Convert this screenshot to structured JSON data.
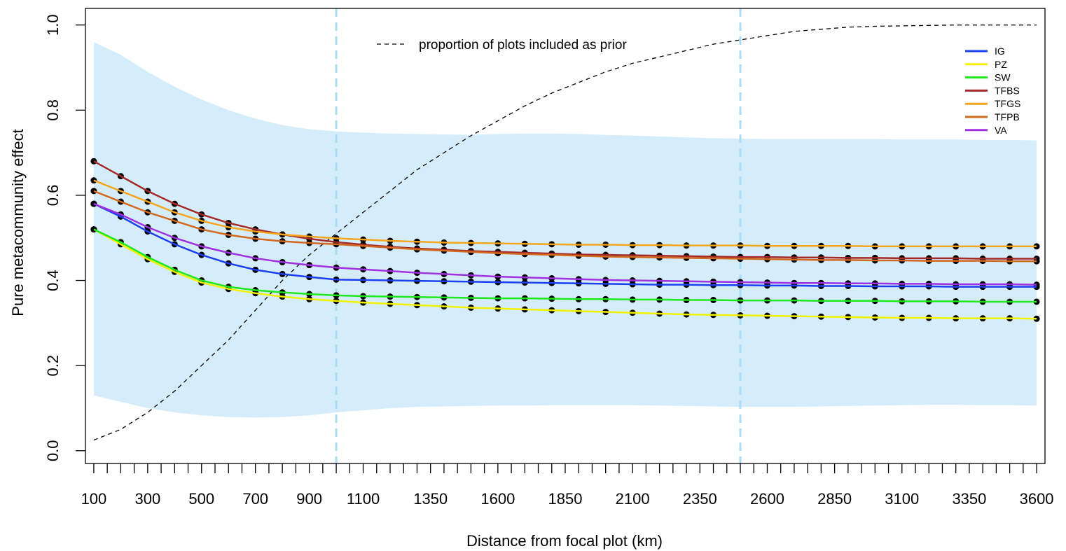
{
  "chart_data": {
    "type": "line",
    "x_label": "Distance from focal plot (km)",
    "y_label": "Pure metacommunity effect",
    "x": [
      100,
      200,
      300,
      400,
      500,
      600,
      700,
      800,
      900,
      1000,
      1100,
      1200,
      1300,
      1400,
      1500,
      1600,
      1700,
      1800,
      1900,
      2000,
      2100,
      2200,
      2300,
      2400,
      2500,
      2600,
      2700,
      2800,
      2900,
      3000,
      3100,
      3200,
      3300,
      3400,
      3500,
      3600
    ],
    "xlim": [
      69,
      3631
    ],
    "ylim": [
      -0.03,
      1.039
    ],
    "xticks": [
      100,
      300,
      500,
      700,
      900,
      1100,
      1350,
      1600,
      1850,
      2100,
      2350,
      2600,
      2850,
      3100,
      3350,
      3600
    ],
    "xminor_ticks": [
      150,
      200,
      250,
      350,
      400,
      450,
      550,
      600,
      650,
      750,
      800,
      850,
      950,
      1000,
      1050,
      1150,
      1200,
      1250,
      1300,
      1400,
      1450,
      1500,
      1550,
      1650,
      1700,
      1750,
      1800,
      1900,
      1950,
      2000,
      2050,
      2150,
      2200,
      2250,
      2300,
      2400,
      2450,
      2500,
      2550,
      2650,
      2700,
      2750,
      2800,
      2900,
      2950,
      3000,
      3050,
      3150,
      3200,
      3250,
      3300,
      3400,
      3450,
      3500,
      3550
    ],
    "yticks": [
      {
        "value": 0,
        "label": "0.0"
      },
      0.2,
      0.4,
      0.6,
      0.8,
      {
        "value": 1,
        "label": "1.0"
      }
    ],
    "points": true,
    "legend_position": "top-right",
    "series": [
      {
        "name": "IG",
        "color": "#1c3ff0",
        "values": [
          0.58,
          0.55,
          0.515,
          0.485,
          0.46,
          0.44,
          0.425,
          0.415,
          0.408,
          0.402,
          0.401,
          0.4,
          0.399,
          0.398,
          0.397,
          0.396,
          0.395,
          0.394,
          0.393,
          0.392,
          0.391,
          0.39,
          0.39,
          0.389,
          0.389,
          0.388,
          0.388,
          0.387,
          0.387,
          0.386,
          0.386,
          0.386,
          0.385,
          0.385,
          0.385,
          0.385
        ]
      },
      {
        "name": "PZ",
        "color": "#f2f200",
        "values": [
          0.52,
          0.485,
          0.45,
          0.42,
          0.395,
          0.38,
          0.37,
          0.362,
          0.356,
          0.352,
          0.348,
          0.345,
          0.342,
          0.339,
          0.336,
          0.334,
          0.332,
          0.33,
          0.328,
          0.326,
          0.324,
          0.322,
          0.32,
          0.319,
          0.318,
          0.317,
          0.316,
          0.315,
          0.314,
          0.313,
          0.312,
          0.312,
          0.311,
          0.311,
          0.311,
          0.31
        ]
      },
      {
        "name": "SW",
        "color": "#1ee81e",
        "values": [
          0.52,
          0.49,
          0.455,
          0.425,
          0.4,
          0.385,
          0.377,
          0.372,
          0.368,
          0.365,
          0.363,
          0.362,
          0.361,
          0.36,
          0.359,
          0.358,
          0.358,
          0.357,
          0.356,
          0.356,
          0.355,
          0.355,
          0.354,
          0.354,
          0.353,
          0.353,
          0.353,
          0.352,
          0.352,
          0.352,
          0.351,
          0.351,
          0.351,
          0.35,
          0.35,
          0.35
        ]
      },
      {
        "name": "TFBS",
        "color": "#a52a2a",
        "values": [
          0.68,
          0.645,
          0.61,
          0.58,
          0.555,
          0.535,
          0.52,
          0.508,
          0.498,
          0.49,
          0.484,
          0.479,
          0.475,
          0.472,
          0.469,
          0.467,
          0.465,
          0.463,
          0.461,
          0.46,
          0.459,
          0.458,
          0.457,
          0.456,
          0.455,
          0.455,
          0.454,
          0.454,
          0.453,
          0.453,
          0.452,
          0.452,
          0.452,
          0.451,
          0.451,
          0.451
        ]
      },
      {
        "name": "TFGS",
        "color": "#f5a51e",
        "values": [
          0.635,
          0.61,
          0.585,
          0.56,
          0.54,
          0.525,
          0.515,
          0.508,
          0.503,
          0.499,
          0.496,
          0.493,
          0.491,
          0.489,
          0.488,
          0.487,
          0.486,
          0.485,
          0.484,
          0.484,
          0.483,
          0.483,
          0.482,
          0.482,
          0.482,
          0.481,
          0.481,
          0.481,
          0.481,
          0.48,
          0.48,
          0.48,
          0.48,
          0.48,
          0.48,
          0.48
        ]
      },
      {
        "name": "TFPB",
        "color": "#d2691e",
        "values": [
          0.61,
          0.585,
          0.56,
          0.54,
          0.52,
          0.507,
          0.498,
          0.492,
          0.488,
          0.485,
          0.481,
          0.477,
          0.473,
          0.47,
          0.467,
          0.464,
          0.462,
          0.46,
          0.458,
          0.456,
          0.455,
          0.454,
          0.453,
          0.452,
          0.451,
          0.45,
          0.449,
          0.448,
          0.448,
          0.447,
          0.447,
          0.446,
          0.446,
          0.446,
          0.445,
          0.445
        ]
      },
      {
        "name": "VA",
        "color": "#a030e0",
        "values": [
          0.58,
          0.555,
          0.525,
          0.5,
          0.48,
          0.465,
          0.452,
          0.443,
          0.436,
          0.43,
          0.426,
          0.422,
          0.418,
          0.415,
          0.412,
          0.409,
          0.407,
          0.405,
          0.403,
          0.401,
          0.4,
          0.399,
          0.398,
          0.397,
          0.396,
          0.395,
          0.394,
          0.394,
          0.393,
          0.393,
          0.392,
          0.392,
          0.391,
          0.391,
          0.391,
          0.39
        ]
      }
    ],
    "proportion": {
      "name": "proportion of plots included as prior",
      "color": "#000000",
      "values": [
        0.025,
        0.05,
        0.09,
        0.14,
        0.2,
        0.26,
        0.33,
        0.4,
        0.46,
        0.51,
        0.56,
        0.61,
        0.66,
        0.7,
        0.74,
        0.775,
        0.81,
        0.84,
        0.865,
        0.89,
        0.91,
        0.925,
        0.94,
        0.955,
        0.965,
        0.975,
        0.985,
        0.99,
        0.995,
        0.997,
        0.998,
        0.999,
        1.0,
        1.0,
        1.0,
        1.0
      ]
    },
    "band": {
      "color": "#d5edfa",
      "upper": [
        0.96,
        0.93,
        0.89,
        0.855,
        0.825,
        0.8,
        0.78,
        0.765,
        0.755,
        0.75,
        0.747,
        0.745,
        0.744,
        0.743,
        0.742,
        0.744,
        0.745,
        0.745,
        0.744,
        0.742,
        0.74,
        0.738,
        0.736,
        0.734,
        0.733,
        0.732,
        0.732,
        0.732,
        0.732,
        0.732,
        0.731,
        0.731,
        0.731,
        0.73,
        0.73,
        0.729
      ],
      "lower": [
        0.13,
        0.115,
        0.1,
        0.09,
        0.083,
        0.079,
        0.078,
        0.079,
        0.083,
        0.09,
        0.095,
        0.1,
        0.103,
        0.104,
        0.105,
        0.106,
        0.106,
        0.107,
        0.107,
        0.107,
        0.107,
        0.106,
        0.105,
        0.104,
        0.103,
        0.103,
        0.103,
        0.104,
        0.105,
        0.106,
        0.107,
        0.108,
        0.108,
        0.107,
        0.107,
        0.106
      ]
    },
    "vlines": {
      "color": "#aadcf5",
      "values": [
        1000,
        2500
      ]
    }
  }
}
